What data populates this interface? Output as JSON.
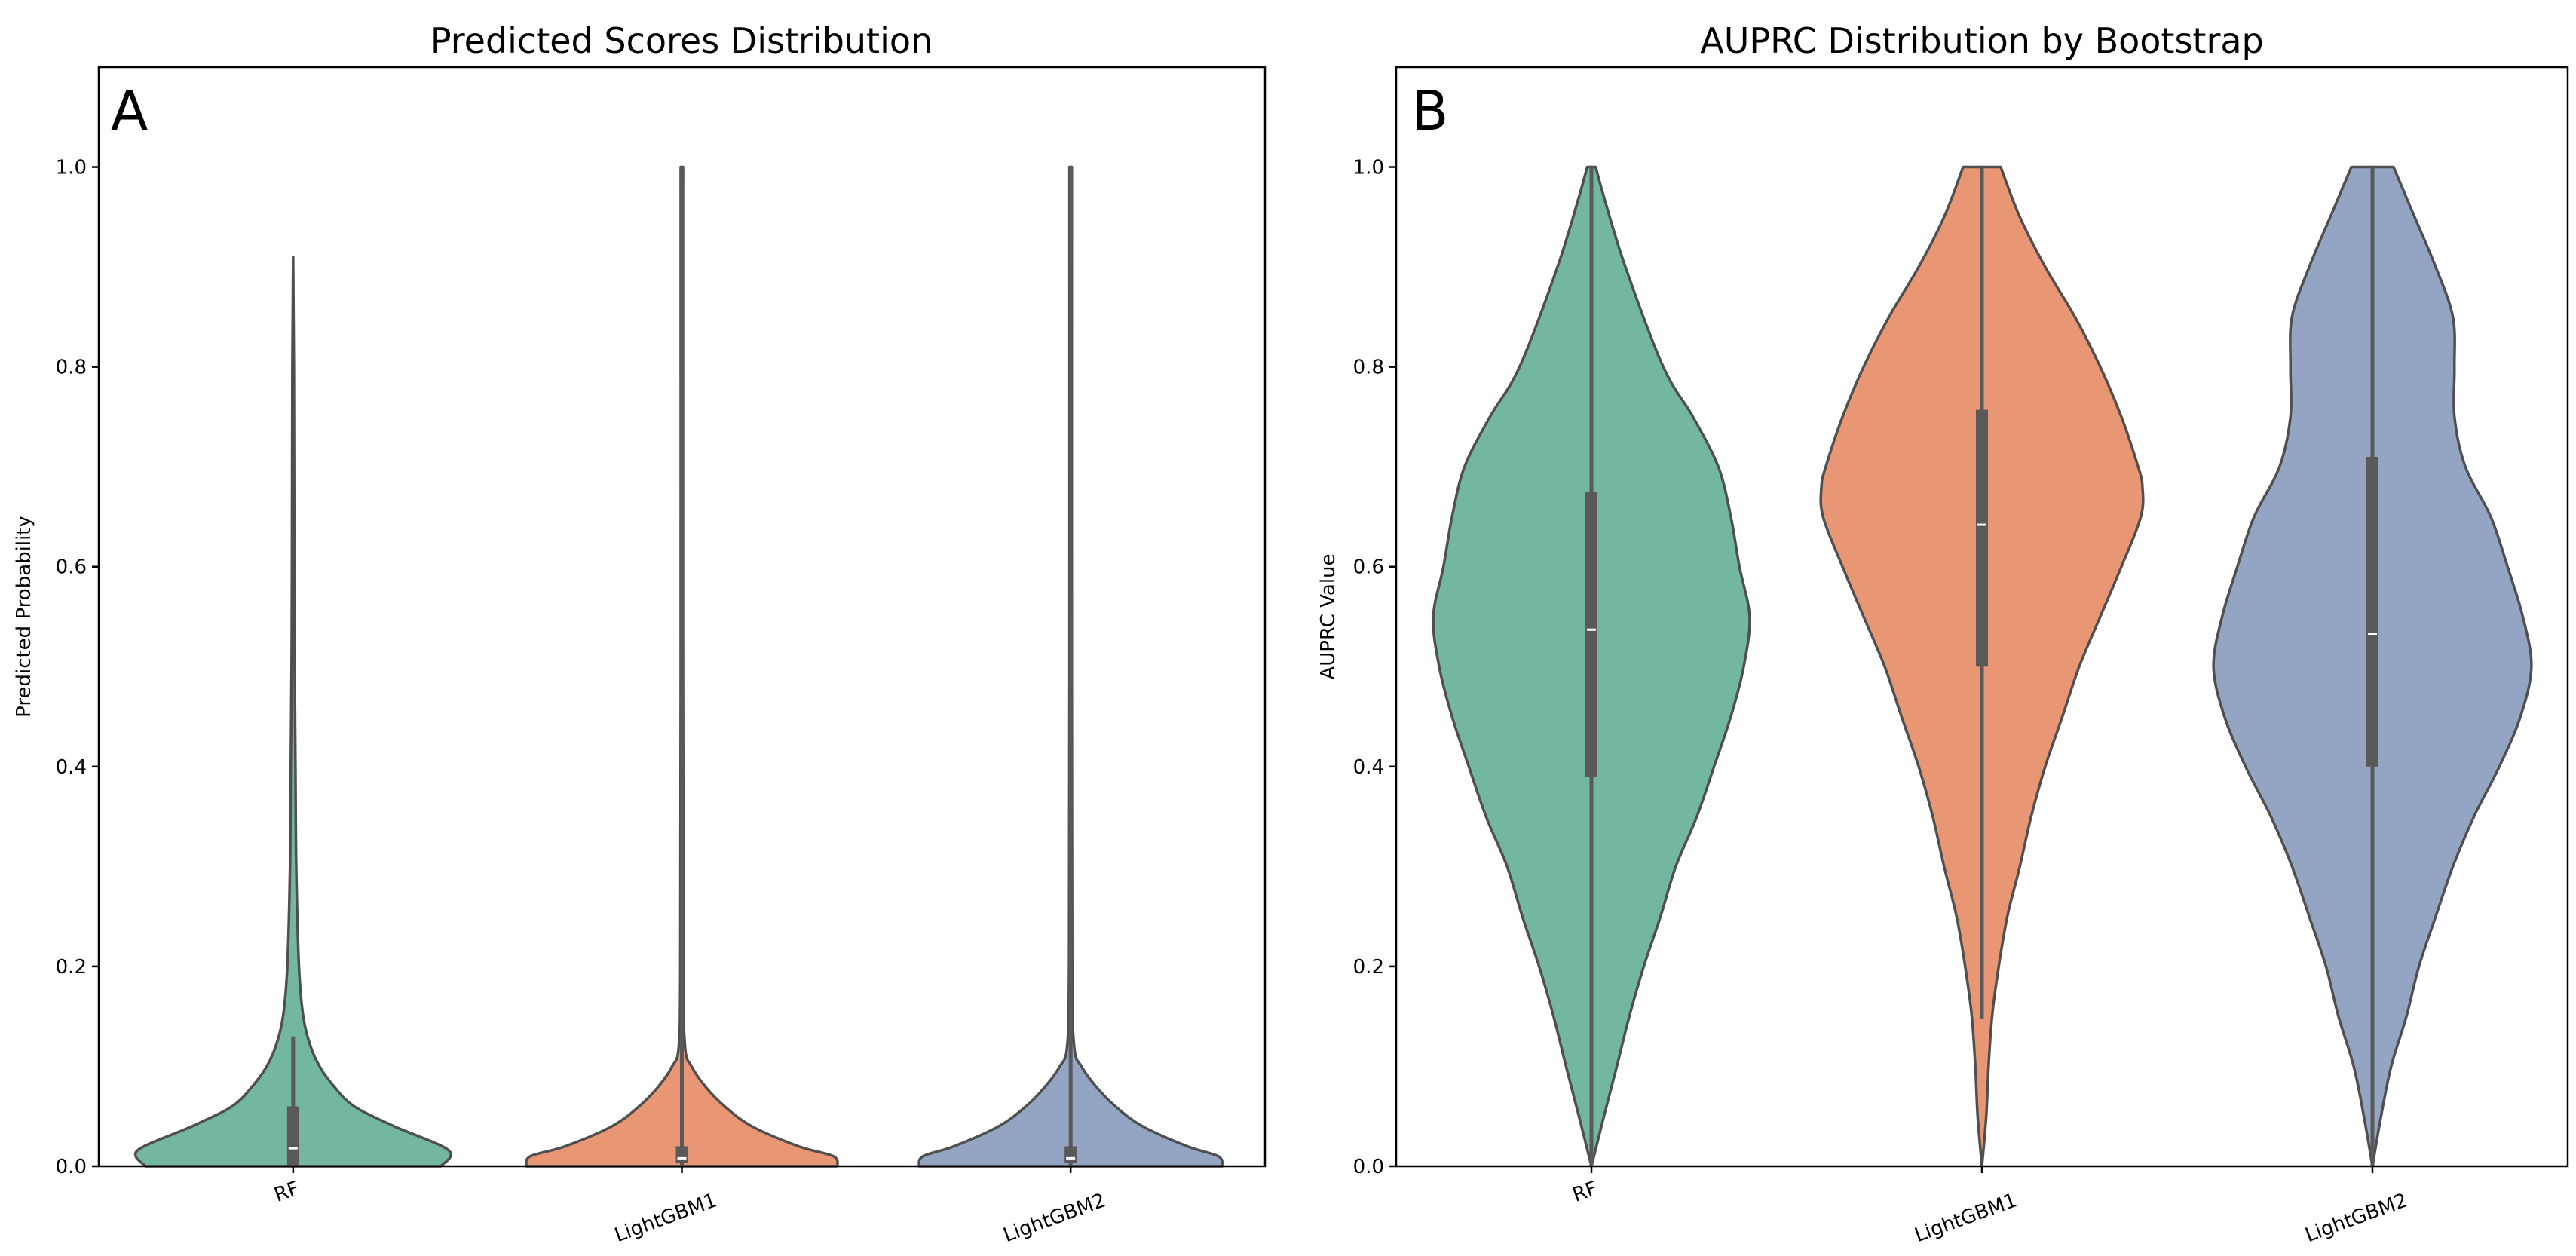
{
  "colors": {
    "RF": "#73b6a1",
    "LightGBM1": "#e99675",
    "LightGBM2": "#94a4c3",
    "edge": "#4f4f4f",
    "box": "#595959",
    "median": "#ffffff"
  },
  "chart_data": [
    {
      "type": "violin",
      "panel_label": "A",
      "title": "Predicted Scores Distribution",
      "xlabel": "",
      "ylabel": "Predicted Probability",
      "ylim": [
        0,
        1.1
      ],
      "yticks": [
        0.0,
        0.2,
        0.4,
        0.6,
        0.8,
        1.0
      ],
      "ytick_labels": [
        "0.0",
        "0.2",
        "0.4",
        "0.6",
        "0.8",
        "1.0"
      ],
      "categories": [
        "RF",
        "LightGBM1",
        "LightGBM2"
      ],
      "grid": false,
      "violins": [
        {
          "name": "RF",
          "density": [
            [
              0,
              0.38
            ],
            [
              0.016,
              0.4
            ],
            [
              0.04,
              0.26
            ],
            [
              0.06,
              0.157
            ],
            [
              0.08,
              0.105
            ],
            [
              0.1,
              0.068
            ],
            [
              0.12,
              0.045
            ],
            [
              0.15,
              0.026
            ],
            [
              0.2,
              0.015
            ],
            [
              0.3,
              0.008
            ],
            [
              0.4,
              0.006
            ],
            [
              0.5,
              0.004
            ],
            [
              0.6,
              0.003
            ],
            [
              0.8,
              0.002
            ],
            [
              0.91,
              0.0
            ]
          ],
          "box": {
            "whisker_low": 0.0,
            "q1": 0.0,
            "median": 0.018,
            "q3": 0.06,
            "whisker_high": 0.13
          }
        },
        {
          "name": "LightGBM1",
          "density": [
            [
              0,
              0.4
            ],
            [
              0.01,
              0.39
            ],
            [
              0.02,
              0.3
            ],
            [
              0.04,
              0.18
            ],
            [
              0.06,
              0.11
            ],
            [
              0.08,
              0.06
            ],
            [
              0.1,
              0.025
            ],
            [
              0.12,
              0.008
            ],
            [
              0.2,
              0.004
            ],
            [
              0.5,
              0.003
            ],
            [
              1.0,
              0.003
            ]
          ],
          "box": {
            "whisker_low": 0.0,
            "q1": 0.003,
            "median": 0.008,
            "q3": 0.02,
            "whisker_high": 1.0
          }
        },
        {
          "name": "LightGBM2",
          "density": [
            [
              0,
              0.39
            ],
            [
              0.01,
              0.38
            ],
            [
              0.02,
              0.3
            ],
            [
              0.04,
              0.185
            ],
            [
              0.06,
              0.115
            ],
            [
              0.08,
              0.065
            ],
            [
              0.1,
              0.028
            ],
            [
              0.12,
              0.009
            ],
            [
              0.2,
              0.004
            ],
            [
              0.5,
              0.003
            ],
            [
              1.0,
              0.003
            ]
          ],
          "box": {
            "whisker_low": 0.0,
            "q1": 0.003,
            "median": 0.008,
            "q3": 0.02,
            "whisker_high": 1.0
          }
        }
      ]
    },
    {
      "type": "violin",
      "panel_label": "B",
      "title": "AUPRC Distribution by Bootstrap",
      "xlabel": "",
      "ylabel": "AUPRC Value",
      "ylim": [
        0,
        1.1
      ],
      "yticks": [
        0.0,
        0.2,
        0.4,
        0.6,
        0.8,
        1.0
      ],
      "ytick_labels": [
        "0.0",
        "0.2",
        "0.4",
        "0.6",
        "0.8",
        "1.0"
      ],
      "categories": [
        "RF",
        "LightGBM1",
        "LightGBM2"
      ],
      "grid": false,
      "violins": [
        {
          "name": "RF",
          "density": [
            [
              0,
              0
            ],
            [
              0.05,
              0.032
            ],
            [
              0.1,
              0.065
            ],
            [
              0.15,
              0.097
            ],
            [
              0.2,
              0.134
            ],
            [
              0.25,
              0.177
            ],
            [
              0.3,
              0.216
            ],
            [
              0.35,
              0.27
            ],
            [
              0.4,
              0.314
            ],
            [
              0.45,
              0.357
            ],
            [
              0.5,
              0.39
            ],
            [
              0.55,
              0.405
            ],
            [
              0.6,
              0.379
            ],
            [
              0.65,
              0.357
            ],
            [
              0.7,
              0.325
            ],
            [
              0.75,
              0.26
            ],
            [
              0.8,
              0.184
            ],
            [
              0.9,
              0.087
            ],
            [
              0.97,
              0.032
            ],
            [
              1.0,
              0.011
            ]
          ],
          "box": {
            "whisker_low": 0.0,
            "q1": 0.39,
            "median": 0.537,
            "q3": 0.675,
            "whisker_high": 1.0
          }
        },
        {
          "name": "LightGBM1",
          "density": [
            [
              0,
              0
            ],
            [
              0.05,
              0.011
            ],
            [
              0.1,
              0.017
            ],
            [
              0.15,
              0.026
            ],
            [
              0.2,
              0.043
            ],
            [
              0.25,
              0.065
            ],
            [
              0.3,
              0.097
            ],
            [
              0.35,
              0.126
            ],
            [
              0.4,
              0.162
            ],
            [
              0.45,
              0.206
            ],
            [
              0.5,
              0.249
            ],
            [
              0.55,
              0.303
            ],
            [
              0.6,
              0.357
            ],
            [
              0.65,
              0.407
            ],
            [
              0.68,
              0.411
            ],
            [
              0.7,
              0.4
            ],
            [
              0.75,
              0.357
            ],
            [
              0.8,
              0.303
            ],
            [
              0.85,
              0.238
            ],
            [
              0.9,
              0.162
            ],
            [
              0.95,
              0.097
            ],
            [
              1.0,
              0.048
            ]
          ],
          "box": {
            "whisker_low": 0.148,
            "q1": 0.5,
            "median": 0.642,
            "q3": 0.757,
            "whisker_high": 1.0
          }
        },
        {
          "name": "LightGBM2",
          "density": [
            [
              0,
              0
            ],
            [
              0.05,
              0.022
            ],
            [
              0.1,
              0.048
            ],
            [
              0.15,
              0.087
            ],
            [
              0.2,
              0.119
            ],
            [
              0.25,
              0.162
            ],
            [
              0.3,
              0.206
            ],
            [
              0.35,
              0.26
            ],
            [
              0.4,
              0.325
            ],
            [
              0.45,
              0.379
            ],
            [
              0.5,
              0.407
            ],
            [
              0.55,
              0.385
            ],
            [
              0.6,
              0.346
            ],
            [
              0.65,
              0.303
            ],
            [
              0.7,
              0.238
            ],
            [
              0.75,
              0.21
            ],
            [
              0.8,
              0.21
            ],
            [
              0.85,
              0.206
            ],
            [
              0.9,
              0.162
            ],
            [
              0.95,
              0.108
            ],
            [
              1.0,
              0.054
            ]
          ],
          "box": {
            "whisker_low": 0.0,
            "q1": 0.4,
            "median": 0.533,
            "q3": 0.71,
            "whisker_high": 1.0
          }
        }
      ]
    }
  ]
}
